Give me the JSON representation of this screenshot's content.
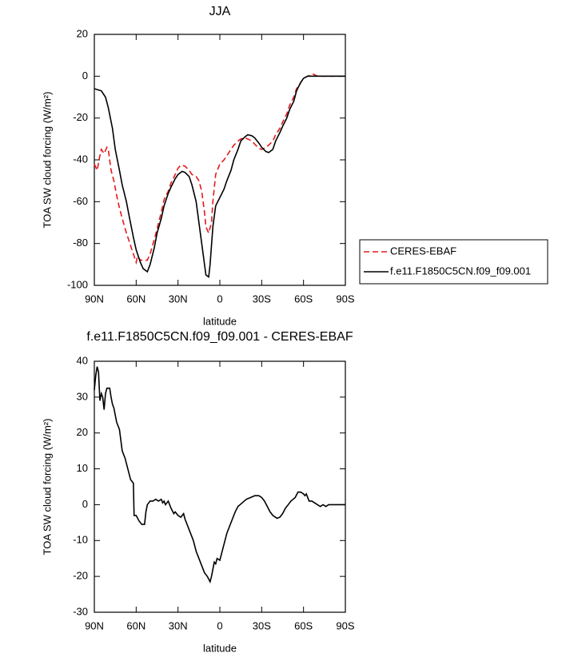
{
  "chart_data": [
    {
      "type": "line",
      "title": "JJA",
      "xlabel": "latitude",
      "ylabel": "TOA SW cloud forcing (W/m²)",
      "xlim": [
        90,
        -90
      ],
      "ylim": [
        20,
        -100
      ],
      "xticks": [
        {
          "value": 90,
          "label": "90N"
        },
        {
          "value": 60,
          "label": "60N"
        },
        {
          "value": 30,
          "label": "30N"
        },
        0,
        {
          "value": -30,
          "label": "30S"
        },
        {
          "value": -60,
          "label": "60S"
        },
        {
          "value": -90,
          "label": "90S"
        }
      ],
      "yticks": [
        20,
        0,
        -20,
        -40,
        -60,
        -80,
        -100
      ],
      "legend": "right",
      "series": [
        {
          "name": "CERES-EBAF",
          "color": "#e41a1c",
          "dashed": true,
          "x": [
            90,
            88,
            86,
            85,
            83,
            81,
            80,
            78,
            76,
            74,
            72,
            70,
            67,
            65,
            62,
            60,
            59,
            57,
            55,
            52,
            50,
            47,
            45,
            42,
            40,
            37,
            35,
            32,
            30,
            28,
            25,
            22,
            20,
            17,
            15,
            13,
            11,
            10,
            8,
            6,
            5,
            3,
            0,
            -3,
            -5,
            -8,
            -10,
            -13,
            -15,
            -18,
            -20,
            -23,
            -25,
            -28,
            -30,
            -33,
            -35,
            -38,
            -40,
            -43,
            -45,
            -48,
            -50,
            -53,
            -55,
            -58,
            -60,
            -63,
            -65,
            -67,
            -70,
            -90
          ],
          "values": [
            -42,
            -45,
            -38,
            -35,
            -37,
            -34,
            -35,
            -45,
            -50,
            -57,
            -63,
            -68,
            -75,
            -79,
            -85,
            -89,
            -86,
            -88,
            -88,
            -88,
            -85,
            -78,
            -73,
            -65,
            -59,
            -55,
            -51,
            -47,
            -44,
            -42.5,
            -43,
            -45,
            -47,
            -48,
            -50,
            -55,
            -65,
            -72,
            -75,
            -70,
            -60,
            -47,
            -42,
            -40,
            -38,
            -35,
            -33,
            -31,
            -30,
            -29.5,
            -30,
            -31,
            -32.5,
            -34.5,
            -35,
            -34,
            -33,
            -31,
            -28,
            -25,
            -22,
            -18,
            -14,
            -10,
            -6,
            -3,
            -1,
            0,
            0.5,
            1,
            0,
            0
          ]
        },
        {
          "name": "f.e11.F1850C5CN.f09_f09.001",
          "color": "#000000",
          "dashed": false,
          "x": [
            90,
            85,
            82,
            80,
            77,
            75,
            72,
            70,
            67,
            65,
            62,
            60,
            57,
            55,
            52,
            50,
            47,
            45,
            42,
            40,
            37,
            35,
            32,
            30,
            27,
            25,
            22,
            20,
            17,
            15,
            12,
            10,
            8,
            7,
            5,
            3,
            0,
            -3,
            -5,
            -8,
            -10,
            -13,
            -15,
            -18,
            -20,
            -23,
            -25,
            -28,
            -30,
            -33,
            -35,
            -38,
            -40,
            -43,
            -45,
            -48,
            -50,
            -53,
            -55,
            -58,
            -60,
            -63,
            -70,
            -90
          ],
          "values": [
            -6,
            -7,
            -10,
            -15,
            -25,
            -35,
            -45,
            -52,
            -60,
            -67,
            -77,
            -83,
            -89,
            -92,
            -93.5,
            -90,
            -82,
            -75,
            -68,
            -62,
            -56,
            -53,
            -49,
            -47,
            -45.5,
            -46,
            -48,
            -52,
            -60,
            -70,
            -85,
            -95,
            -96,
            -90,
            -72,
            -62,
            -58,
            -54,
            -50,
            -45,
            -40,
            -35,
            -31,
            -29,
            -28,
            -28.5,
            -29.5,
            -32,
            -34,
            -36,
            -36.5,
            -35,
            -31,
            -27,
            -24,
            -20,
            -16,
            -12,
            -7,
            -3,
            -1,
            0,
            0,
            0
          ]
        }
      ]
    },
    {
      "type": "line",
      "title": "f.e11.F1850C5CN.f09_f09.001 - CERES-EBAF",
      "xlabel": "latitude",
      "ylabel": "TOA SW cloud forcing (W/m²)",
      "xlim": [
        90,
        -90
      ],
      "ylim": [
        40,
        -30
      ],
      "xticks": [
        {
          "value": 90,
          "label": "90N"
        },
        {
          "value": 60,
          "label": "60N"
        },
        {
          "value": 30,
          "label": "30N"
        },
        0,
        {
          "value": -30,
          "label": "30S"
        },
        {
          "value": -60,
          "label": "60S"
        },
        {
          "value": -90,
          "label": "90S"
        }
      ],
      "yticks": [
        40,
        30,
        20,
        10,
        0,
        -10,
        -20,
        -30
      ],
      "series": [
        {
          "color": "#000000",
          "dashed": false,
          "x": [
            90,
            89,
            88,
            87,
            86,
            85,
            84,
            83,
            82,
            81,
            79,
            78,
            77,
            76,
            74,
            72,
            70,
            68,
            66,
            64,
            63,
            62,
            61.5,
            60,
            58,
            56,
            54,
            53,
            52,
            50,
            48,
            46,
            44,
            42,
            41,
            40,
            39,
            37,
            35,
            33,
            32,
            30,
            28,
            26,
            25,
            23,
            21,
            19,
            17,
            15,
            13,
            11,
            9,
            7,
            6,
            5,
            4,
            3,
            2,
            0,
            -1,
            -3,
            -5,
            -7,
            -9,
            -11,
            -13,
            -16,
            -19,
            -22,
            -25,
            -28,
            -30,
            -32,
            -34,
            -36,
            -38,
            -41,
            -43,
            -45,
            -47,
            -49,
            -51,
            -54,
            -56,
            -58,
            -60,
            -61,
            -62,
            -63,
            -64,
            -66,
            -68,
            -70,
            -72,
            -74,
            -76,
            -78,
            -80,
            -90
          ],
          "values": [
            32,
            36,
            38.5,
            37,
            29,
            31,
            30,
            26.5,
            31,
            32.5,
            32.5,
            30,
            28,
            27,
            23,
            21,
            15,
            13,
            10,
            7,
            6.5,
            6,
            -3,
            -3,
            -4.5,
            -5.5,
            -5.5,
            -2,
            0,
            1,
            1,
            1.5,
            1,
            1.5,
            0.5,
            1,
            0,
            1,
            -1,
            -2.5,
            -2,
            -3,
            -3.5,
            -2.5,
            -4,
            -6,
            -8,
            -10,
            -13,
            -15,
            -17,
            -19,
            -20,
            -21.5,
            -20,
            -18,
            -16,
            -16.5,
            -15,
            -15.5,
            -14,
            -11,
            -8,
            -6,
            -4,
            -2,
            -0.5,
            0.5,
            1.5,
            2,
            2.5,
            2.5,
            2,
            1,
            -0.5,
            -2,
            -3,
            -3.8,
            -3.5,
            -2.5,
            -1,
            0,
            1,
            2,
            3.5,
            3.5,
            3,
            2.5,
            3,
            2,
            1,
            1,
            0.5,
            0,
            -0.5,
            0,
            -0.5,
            0,
            0,
            0
          ]
        }
      ]
    }
  ]
}
